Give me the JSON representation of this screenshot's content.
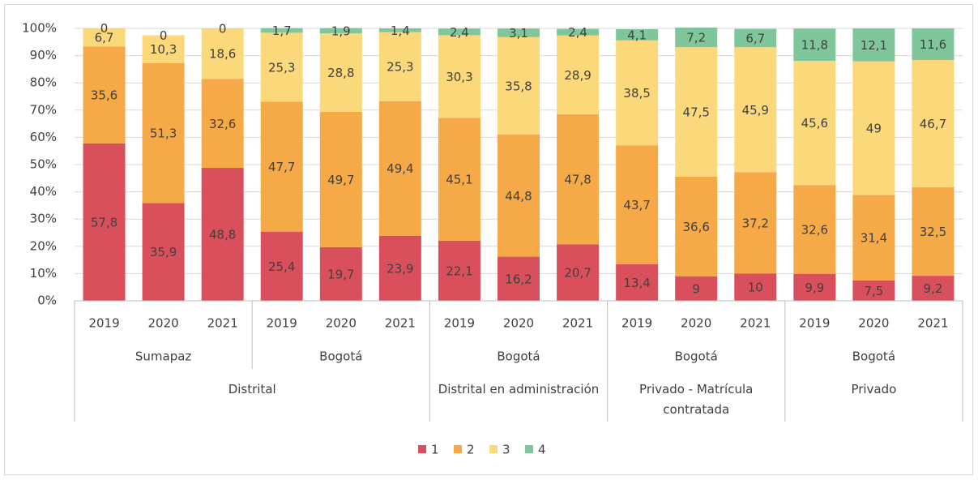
{
  "chart_data": {
    "type": "stacked_bar",
    "groups": [
      {
        "name": "Distrital",
        "subgroups": [
          {
            "name": "Sumapaz",
            "categories": [
              "2019",
              "2020",
              "2021"
            ]
          },
          {
            "name": "Bogotá",
            "categories": [
              "2019",
              "2020",
              "2021"
            ]
          }
        ]
      },
      {
        "name": "Distrital en administración",
        "subgroups": [
          {
            "name": "Bogotá",
            "categories": [
              "2019",
              "2020",
              "2021"
            ]
          }
        ]
      },
      {
        "name": "Privado - Matrícula contratada",
        "subgroups": [
          {
            "name": "Bogotá",
            "categories": [
              "2019",
              "2020",
              "2021"
            ]
          }
        ]
      },
      {
        "name": "Privado",
        "subgroups": [
          {
            "name": "Bogotá",
            "categories": [
              "2019",
              "2020",
              "2021"
            ]
          }
        ]
      }
    ],
    "series": [
      {
        "name": "1",
        "color": "#d9505c",
        "values": [
          57.8,
          35.9,
          48.8,
          25.4,
          19.7,
          23.9,
          22.1,
          16.2,
          20.7,
          13.4,
          9,
          10,
          9.9,
          7.5,
          9.2
        ],
        "value_labels": [
          "57,8",
          "35,9",
          "48,8",
          "25,4",
          "19,7",
          "23,9",
          "22,1",
          "16,2",
          "20,7",
          "13,4",
          "9",
          "10",
          "9,9",
          "7,5",
          "9,2"
        ]
      },
      {
        "name": "2",
        "color": "#f5a947",
        "values": [
          35.6,
          51.3,
          32.6,
          47.7,
          49.7,
          49.4,
          45.1,
          44.8,
          47.8,
          43.7,
          36.6,
          37.2,
          32.6,
          31.4,
          32.5
        ],
        "value_labels": [
          "35,6",
          "51,3",
          "32,6",
          "47,7",
          "49,7",
          "49,4",
          "45,1",
          "44,8",
          "47,8",
          "43,7",
          "36,6",
          "37,2",
          "32,6",
          "31,4",
          "32,5"
        ]
      },
      {
        "name": "3",
        "color": "#fbd87a",
        "values": [
          6.7,
          10.3,
          18.6,
          25.3,
          28.8,
          25.3,
          30.3,
          35.8,
          28.9,
          38.5,
          47.5,
          45.9,
          45.6,
          49,
          46.7
        ],
        "value_labels": [
          "6,7",
          "10,3",
          "18,6",
          "25,3",
          "28,8",
          "25,3",
          "30,3",
          "35,8",
          "28,9",
          "38,5",
          "47,5",
          "45,9",
          "45,6",
          "49",
          "46,7"
        ]
      },
      {
        "name": "4",
        "color": "#7fc79b",
        "values": [
          0,
          0,
          0,
          1.7,
          1.9,
          1.4,
          2.4,
          3.1,
          2.4,
          4.1,
          7.2,
          6.7,
          11.8,
          12.1,
          11.6
        ],
        "value_labels": [
          "0",
          "0",
          "0",
          "1,7",
          "1,9",
          "1,4",
          "2,4",
          "3,1",
          "2,4",
          "4,1",
          "7,2",
          "6,7",
          "11,8",
          "12,1",
          "11,6"
        ]
      }
    ],
    "ylim": [
      0,
      100
    ],
    "yticks": [
      {
        "value": 0,
        "label": "0%"
      },
      {
        "value": 10,
        "label": "10%"
      },
      {
        "value": 20,
        "label": "20%"
      },
      {
        "value": 30,
        "label": "30%"
      },
      {
        "value": 40,
        "label": "40%"
      },
      {
        "value": 50,
        "label": "50%"
      },
      {
        "value": 60,
        "label": "60%"
      },
      {
        "value": 70,
        "label": "70%"
      },
      {
        "value": 80,
        "label": "80%"
      },
      {
        "value": 90,
        "label": "90%"
      },
      {
        "value": 100,
        "label": "100%"
      }
    ],
    "grid": true,
    "legend": "bottom"
  }
}
